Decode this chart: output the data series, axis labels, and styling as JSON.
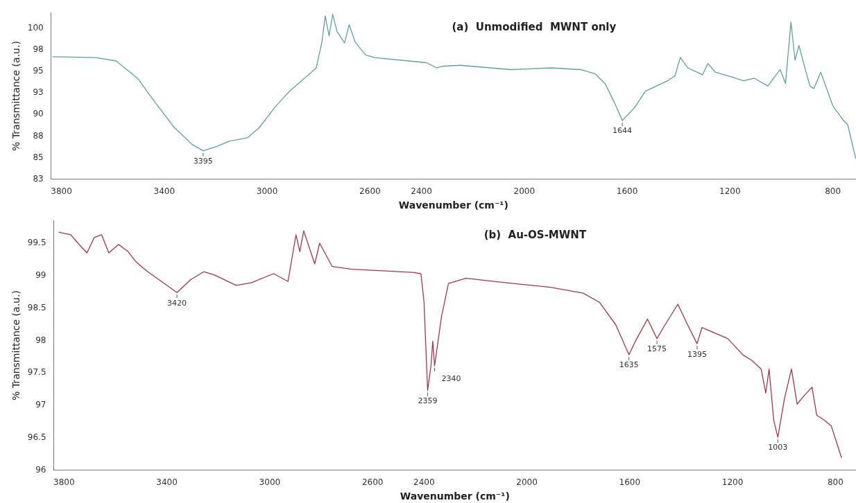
{
  "chart_data": [
    {
      "type": "line",
      "title": "(a)  Unmodified  MWNT only",
      "xlabel": "Wavenumber (cm⁻¹)",
      "ylabel": "% Transmittance (a.u.)",
      "grid": false,
      "marker": "none",
      "color": "#5f9ea8",
      "x": [
        3835,
        3667,
        3587,
        3504,
        3433,
        3361,
        3290,
        3249,
        3196,
        3148,
        3077,
        3030,
        2971,
        2913,
        2855,
        2809,
        2787,
        2774,
        2759,
        2745,
        2728,
        2699,
        2681,
        2658,
        2617,
        2582,
        2450,
        2380,
        2341,
        2315,
        2249,
        2052,
        1895,
        1781,
        1724,
        1686,
        1648,
        1619,
        1571,
        1529,
        1443,
        1414,
        1393,
        1364,
        1307,
        1286,
        1257,
        1189,
        1147,
        1105,
        1053,
        1005,
        984,
        963,
        947,
        932,
        905,
        889,
        874,
        847,
        800,
        758,
        742,
        711
      ],
      "values": [
        96.7,
        96.6,
        96.2,
        94.2,
        91.3,
        88.5,
        86.5,
        85.8,
        86.3,
        86.9,
        87.3,
        88.5,
        90.8,
        92.7,
        94.2,
        95.4,
        98.4,
        101.4,
        99.1,
        101.6,
        99.6,
        98.3,
        100.4,
        98.4,
        96.9,
        96.6,
        96.2,
        96.0,
        95.4,
        95.6,
        95.7,
        95.2,
        95.4,
        95.2,
        94.7,
        93.6,
        91.3,
        89.3,
        90.8,
        92.7,
        93.9,
        94.5,
        96.6,
        95.4,
        94.6,
        95.9,
        94.9,
        94.3,
        93.9,
        94.2,
        93.3,
        95.2,
        93.6,
        100.7,
        96.3,
        98.0,
        95.0,
        93.3,
        93.0,
        94.9,
        91.0,
        89.3,
        88.8,
        84.9
      ],
      "xlim": [
        3840,
        710
      ],
      "xticks": [
        3800,
        3400,
        3000,
        2600,
        2400,
        2000,
        1600,
        1200,
        800
      ],
      "ylim": [
        82.5,
        101.8
      ],
      "yticks": [
        {
          "value": 82.5,
          "label": "83"
        },
        85,
        {
          "value": 87.5,
          "label": "88"
        },
        90,
        {
          "value": 92.5,
          "label": "93"
        },
        95,
        {
          "value": 97.5,
          "label": "98"
        },
        100
      ],
      "annotations": [
        {
          "text": "3395",
          "x": 3249,
          "y": 85.8
        },
        {
          "text": "1644",
          "x": 1619,
          "y": 89.3
        }
      ]
    },
    {
      "type": "line",
      "title": "(b)  Au-OS-MWNT",
      "xlabel": "Wavenumber (cm⁻¹)",
      "ylabel": "% Transmittance (a.u.)",
      "grid": false,
      "marker": "none",
      "color": "#a8344a",
      "x": [
        3821,
        3774,
        3746,
        3711,
        3682,
        3654,
        3626,
        3588,
        3551,
        3522,
        3478,
        3421,
        3361,
        3307,
        3257,
        3215,
        3131,
        3072,
        2985,
        2929,
        2898,
        2883,
        2868,
        2825,
        2806,
        2757,
        2686,
        2444,
        2412,
        2400,
        2386,
        2373,
        2366,
        2359,
        2332,
        2305,
        2237,
        2105,
        1909,
        1781,
        1718,
        1654,
        1603,
        1578,
        1531,
        1494,
        1469,
        1413,
        1381,
        1338,
        1319,
        1219,
        1160,
        1124,
        1089,
        1071,
        1058,
        1040,
        1024,
        998,
        971,
        949,
        922,
        891,
        873,
        842,
        816,
        776
      ],
      "values": [
        99.67,
        99.63,
        99.5,
        99.35,
        99.59,
        99.63,
        99.35,
        99.48,
        99.37,
        99.22,
        99.07,
        98.91,
        98.74,
        98.94,
        99.06,
        99.01,
        98.85,
        98.89,
        99.03,
        98.91,
        99.63,
        99.37,
        99.69,
        99.18,
        99.5,
        99.14,
        99.1,
        99.05,
        99.03,
        98.59,
        97.23,
        97.61,
        97.99,
        97.61,
        98.37,
        98.88,
        98.96,
        98.9,
        98.82,
        98.73,
        98.59,
        98.24,
        97.78,
        97.99,
        98.33,
        98.03,
        98.2,
        98.56,
        98.29,
        97.95,
        98.2,
        98.03,
        97.78,
        97.69,
        97.56,
        97.19,
        97.56,
        96.77,
        96.51,
        97.11,
        97.56,
        97.02,
        97.15,
        97.28,
        96.85,
        96.77,
        96.68,
        96.19
      ],
      "xlim": [
        3840,
        720
      ],
      "xticks": [
        3800,
        3400,
        3000,
        2600,
        2400,
        2000,
        1600,
        1200,
        800
      ],
      "ylim": [
        96,
        99.85
      ],
      "yticks": [
        96,
        96.5,
        97,
        97.5,
        98,
        98.5,
        99,
        99.5
      ],
      "annotations": [
        {
          "text": "3420",
          "x": 3361,
          "y": 98.74
        },
        {
          "text": "2359",
          "x": 2386,
          "y": 97.23
        },
        {
          "text": "2340",
          "x": 2359,
          "y": 97.61
        },
        {
          "text": "1635",
          "x": 1603,
          "y": 97.78
        },
        {
          "text": "1575",
          "x": 1494,
          "y": 98.03
        },
        {
          "text": "1395",
          "x": 1338,
          "y": 97.95
        },
        {
          "text": "1003",
          "x": 1024,
          "y": 96.51
        }
      ]
    }
  ]
}
